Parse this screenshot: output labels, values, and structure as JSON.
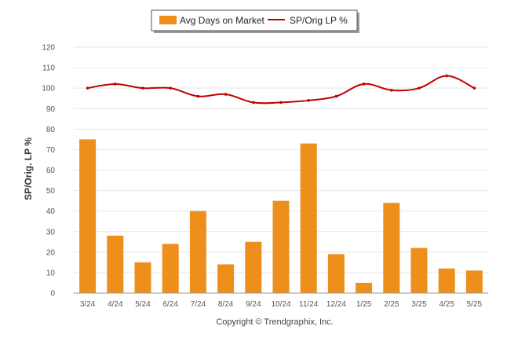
{
  "chart_data": {
    "type": "bar",
    "categories": [
      "3/24",
      "4/24",
      "5/24",
      "6/24",
      "7/24",
      "8/24",
      "9/24",
      "10/24",
      "11/24",
      "12/24",
      "1/25",
      "2/25",
      "3/25",
      "4/25",
      "5/25"
    ],
    "series": [
      {
        "name": "Avg Days on Market",
        "type": "bar",
        "color": "#EE8E1B",
        "values": [
          75,
          28,
          15,
          24,
          40,
          14,
          25,
          45,
          73,
          19,
          5,
          44,
          22,
          12,
          11
        ]
      },
      {
        "name": "SP/Orig LP %",
        "type": "line",
        "color": "#C00000",
        "values": [
          100,
          102,
          100,
          100,
          96,
          97,
          93,
          93,
          94,
          96,
          102,
          99,
          100,
          106,
          100
        ]
      }
    ],
    "ylabel": "SP/Orig. LP %",
    "ylim": [
      0,
      120
    ],
    "yticks": [
      "0",
      "10",
      "20",
      "30",
      "40",
      "50",
      "60",
      "70",
      "80",
      "90",
      "100",
      "110",
      "120"
    ],
    "grid": true,
    "legend_position": "top-center"
  },
  "footer": {
    "copyright": "Copyright © Trendgraphix, Inc."
  }
}
